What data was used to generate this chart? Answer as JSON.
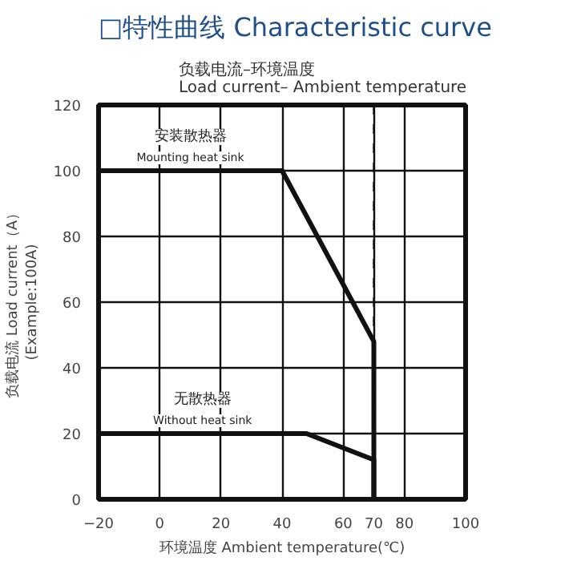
{
  "chart_data": {
    "type": "line",
    "title": "□特性曲线 Characteristic curve",
    "subtitle": "负载电流–环境温度\nLoad current– Ambient temperature",
    "xlabel": "环境温度 Ambient temperature(℃)",
    "ylabel": "负载电流 Load current（A）\n(Example:100A)",
    "series": [
      {
        "color": "#111111",
        "x": [
          -20,
          40,
          70,
          70
        ],
        "values": [
          100,
          100,
          48,
          0
        ]
      },
      {
        "color": "#111111",
        "x": [
          -20,
          48,
          70,
          70
        ],
        "values": [
          20,
          20,
          12,
          0
        ]
      }
    ],
    "annotations": [
      "安装散热器",
      "Mounting heat sink",
      "无散热器",
      "Without heat sink"
    ],
    "ref_lines": [
      {
        "axis": "x",
        "value": 70,
        "label": null,
        "color": "#111111",
        "line_style": "dashed"
      }
    ],
    "xlim": [
      -20,
      100
    ],
    "ylim": [
      0,
      120
    ],
    "xticks": [
      -20,
      0,
      20,
      40,
      60,
      70,
      80,
      100
    ],
    "yticks": [
      0,
      20,
      40,
      60,
      80,
      100,
      120
    ],
    "grid": true,
    "marker": "none",
    "line_style": "solid"
  }
}
